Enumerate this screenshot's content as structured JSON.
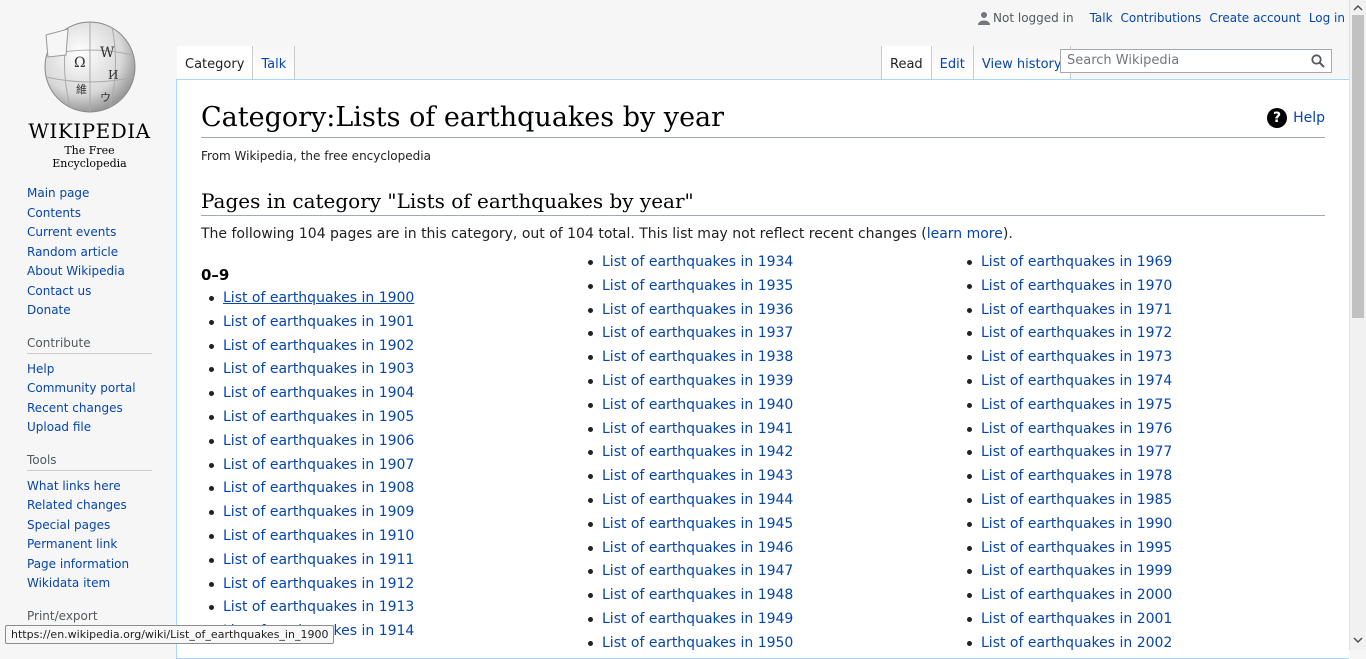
{
  "personal": {
    "not_logged_in": "Not logged in",
    "links": [
      "Talk",
      "Contributions",
      "Create account",
      "Log in"
    ]
  },
  "logo": {
    "wordmark": "Wikipedia",
    "tagline": "The Free Encyclopedia"
  },
  "sidebar": {
    "navigation": [
      "Main page",
      "Contents",
      "Current events",
      "Random article",
      "About Wikipedia",
      "Contact us",
      "Donate"
    ],
    "contribute": {
      "heading": "Contribute",
      "items": [
        "Help",
        "Community portal",
        "Recent changes",
        "Upload file"
      ]
    },
    "tools": {
      "heading": "Tools",
      "items": [
        "What links here",
        "Related changes",
        "Special pages",
        "Permanent link",
        "Page information",
        "Wikidata item"
      ]
    },
    "print": {
      "heading": "Print/export"
    }
  },
  "tabs": {
    "left": [
      "Category",
      "Talk"
    ],
    "right": [
      "Read",
      "Edit",
      "View history"
    ]
  },
  "search": {
    "placeholder": "Search Wikipedia"
  },
  "content": {
    "title": "Category:Lists of earthquakes by year",
    "help": "Help",
    "tagline": "From Wikipedia, the free encyclopedia",
    "subheading": "Pages in category \"Lists of earthquakes by year\"",
    "count_text": "The following 104 pages are in this category, out of 104 total. This list may not reflect recent changes (",
    "learn_more": "learn more",
    "count_end": ").",
    "group_heading": "0–9",
    "col1": [
      "List of earthquakes in 1900",
      "List of earthquakes in 1901",
      "List of earthquakes in 1902",
      "List of earthquakes in 1903",
      "List of earthquakes in 1904",
      "List of earthquakes in 1905",
      "List of earthquakes in 1906",
      "List of earthquakes in 1907",
      "List of earthquakes in 1908",
      "List of earthquakes in 1909",
      "List of earthquakes in 1910",
      "List of earthquakes in 1911",
      "List of earthquakes in 1912",
      "List of earthquakes in 1913",
      "List of earthquakes in 1914"
    ],
    "col2": [
      "List of earthquakes in 1934",
      "List of earthquakes in 1935",
      "List of earthquakes in 1936",
      "List of earthquakes in 1937",
      "List of earthquakes in 1938",
      "List of earthquakes in 1939",
      "List of earthquakes in 1940",
      "List of earthquakes in 1941",
      "List of earthquakes in 1942",
      "List of earthquakes in 1943",
      "List of earthquakes in 1944",
      "List of earthquakes in 1945",
      "List of earthquakes in 1946",
      "List of earthquakes in 1947",
      "List of earthquakes in 1948",
      "List of earthquakes in 1949",
      "List of earthquakes in 1950"
    ],
    "col3": [
      "List of earthquakes in 1969",
      "List of earthquakes in 1970",
      "List of earthquakes in 1971",
      "List of earthquakes in 1972",
      "List of earthquakes in 1973",
      "List of earthquakes in 1974",
      "List of earthquakes in 1975",
      "List of earthquakes in 1976",
      "List of earthquakes in 1977",
      "List of earthquakes in 1978",
      "List of earthquakes in 1985",
      "List of earthquakes in 1990",
      "List of earthquakes in 1995",
      "List of earthquakes in 1999",
      "List of earthquakes in 2000",
      "List of earthquakes in 2001",
      "List of earthquakes in 2002"
    ]
  },
  "status_url": "https://en.wikipedia.org/wiki/List_of_earthquakes_in_1900",
  "colors": {
    "link": "#0645ad",
    "border": "#a7d7f9",
    "background": "#f6f6f6"
  }
}
